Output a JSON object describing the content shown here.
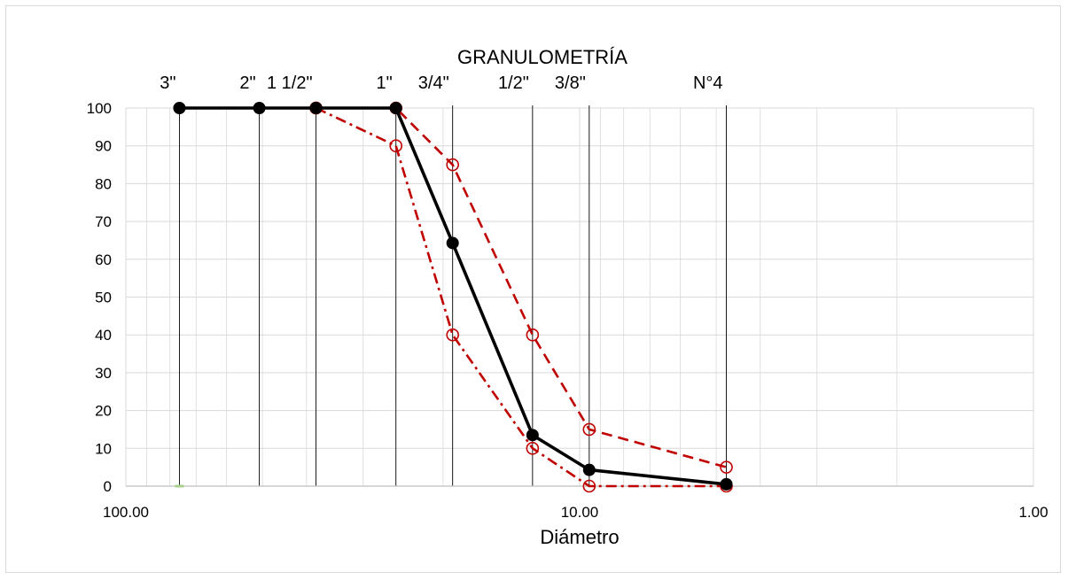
{
  "chart_data": {
    "type": "line",
    "title": "GRANULOMETRÍA",
    "xlabel": "Diámetro",
    "ylabel": "",
    "x_scale": "log-reversed",
    "xlim": [
      100,
      1
    ],
    "ylim": [
      0,
      100
    ],
    "x_ticks": [
      100,
      10,
      1
    ],
    "x_tick_labels": [
      "100.00",
      "10.00",
      "1.00"
    ],
    "y_ticks": [
      0,
      10,
      20,
      30,
      40,
      50,
      60,
      70,
      80,
      90,
      100
    ],
    "y_tick_labels": [
      "0",
      "10",
      "20",
      "30",
      "40",
      "50",
      "60",
      "70",
      "80",
      "90",
      "100"
    ],
    "grid": true,
    "sieves": [
      {
        "label": "3\"",
        "x": 76.2
      },
      {
        "label": "2\"",
        "x": 50.8
      },
      {
        "label": "1 1/2\"",
        "x": 38.1
      },
      {
        "label": "1\"",
        "x": 25.4
      },
      {
        "label": "3/4\"",
        "x": 19.05
      },
      {
        "label": "1/2\"",
        "x": 12.7
      },
      {
        "label": "3/8\"",
        "x": 9.525
      },
      {
        "label": "N°4",
        "x": 4.75
      }
    ],
    "series": [
      {
        "style": "solid",
        "color": "#000000",
        "marker": "filled-circle",
        "points": [
          {
            "x": 76.2,
            "y": 100
          },
          {
            "x": 50.8,
            "y": 100
          },
          {
            "x": 38.1,
            "y": 100
          },
          {
            "x": 25.4,
            "y": 100
          },
          {
            "x": 19.05,
            "y": 64.3
          },
          {
            "x": 12.7,
            "y": 13.5
          },
          {
            "x": 9.525,
            "y": 4.3
          },
          {
            "x": 4.75,
            "y": 0.5
          }
        ]
      },
      {
        "style": "dashed",
        "color": "#c00000",
        "marker": "open-circle",
        "points": [
          {
            "x": 38.1,
            "y": 100
          },
          {
            "x": 25.4,
            "y": 100
          },
          {
            "x": 19.05,
            "y": 85
          },
          {
            "x": 12.7,
            "y": 40
          },
          {
            "x": 9.525,
            "y": 15
          },
          {
            "x": 4.75,
            "y": 5
          }
        ]
      },
      {
        "style": "dash-dot",
        "color": "#c00000",
        "marker": "open-circle",
        "points": [
          {
            "x": 38.1,
            "y": 100
          },
          {
            "x": 25.4,
            "y": 90
          },
          {
            "x": 19.05,
            "y": 40
          },
          {
            "x": 12.7,
            "y": 10
          },
          {
            "x": 9.525,
            "y": 0
          },
          {
            "x": 4.75,
            "y": 0
          }
        ]
      }
    ],
    "extra_markers": [
      {
        "x": 76.2,
        "y": 0,
        "color": "#a9d18e"
      }
    ]
  }
}
